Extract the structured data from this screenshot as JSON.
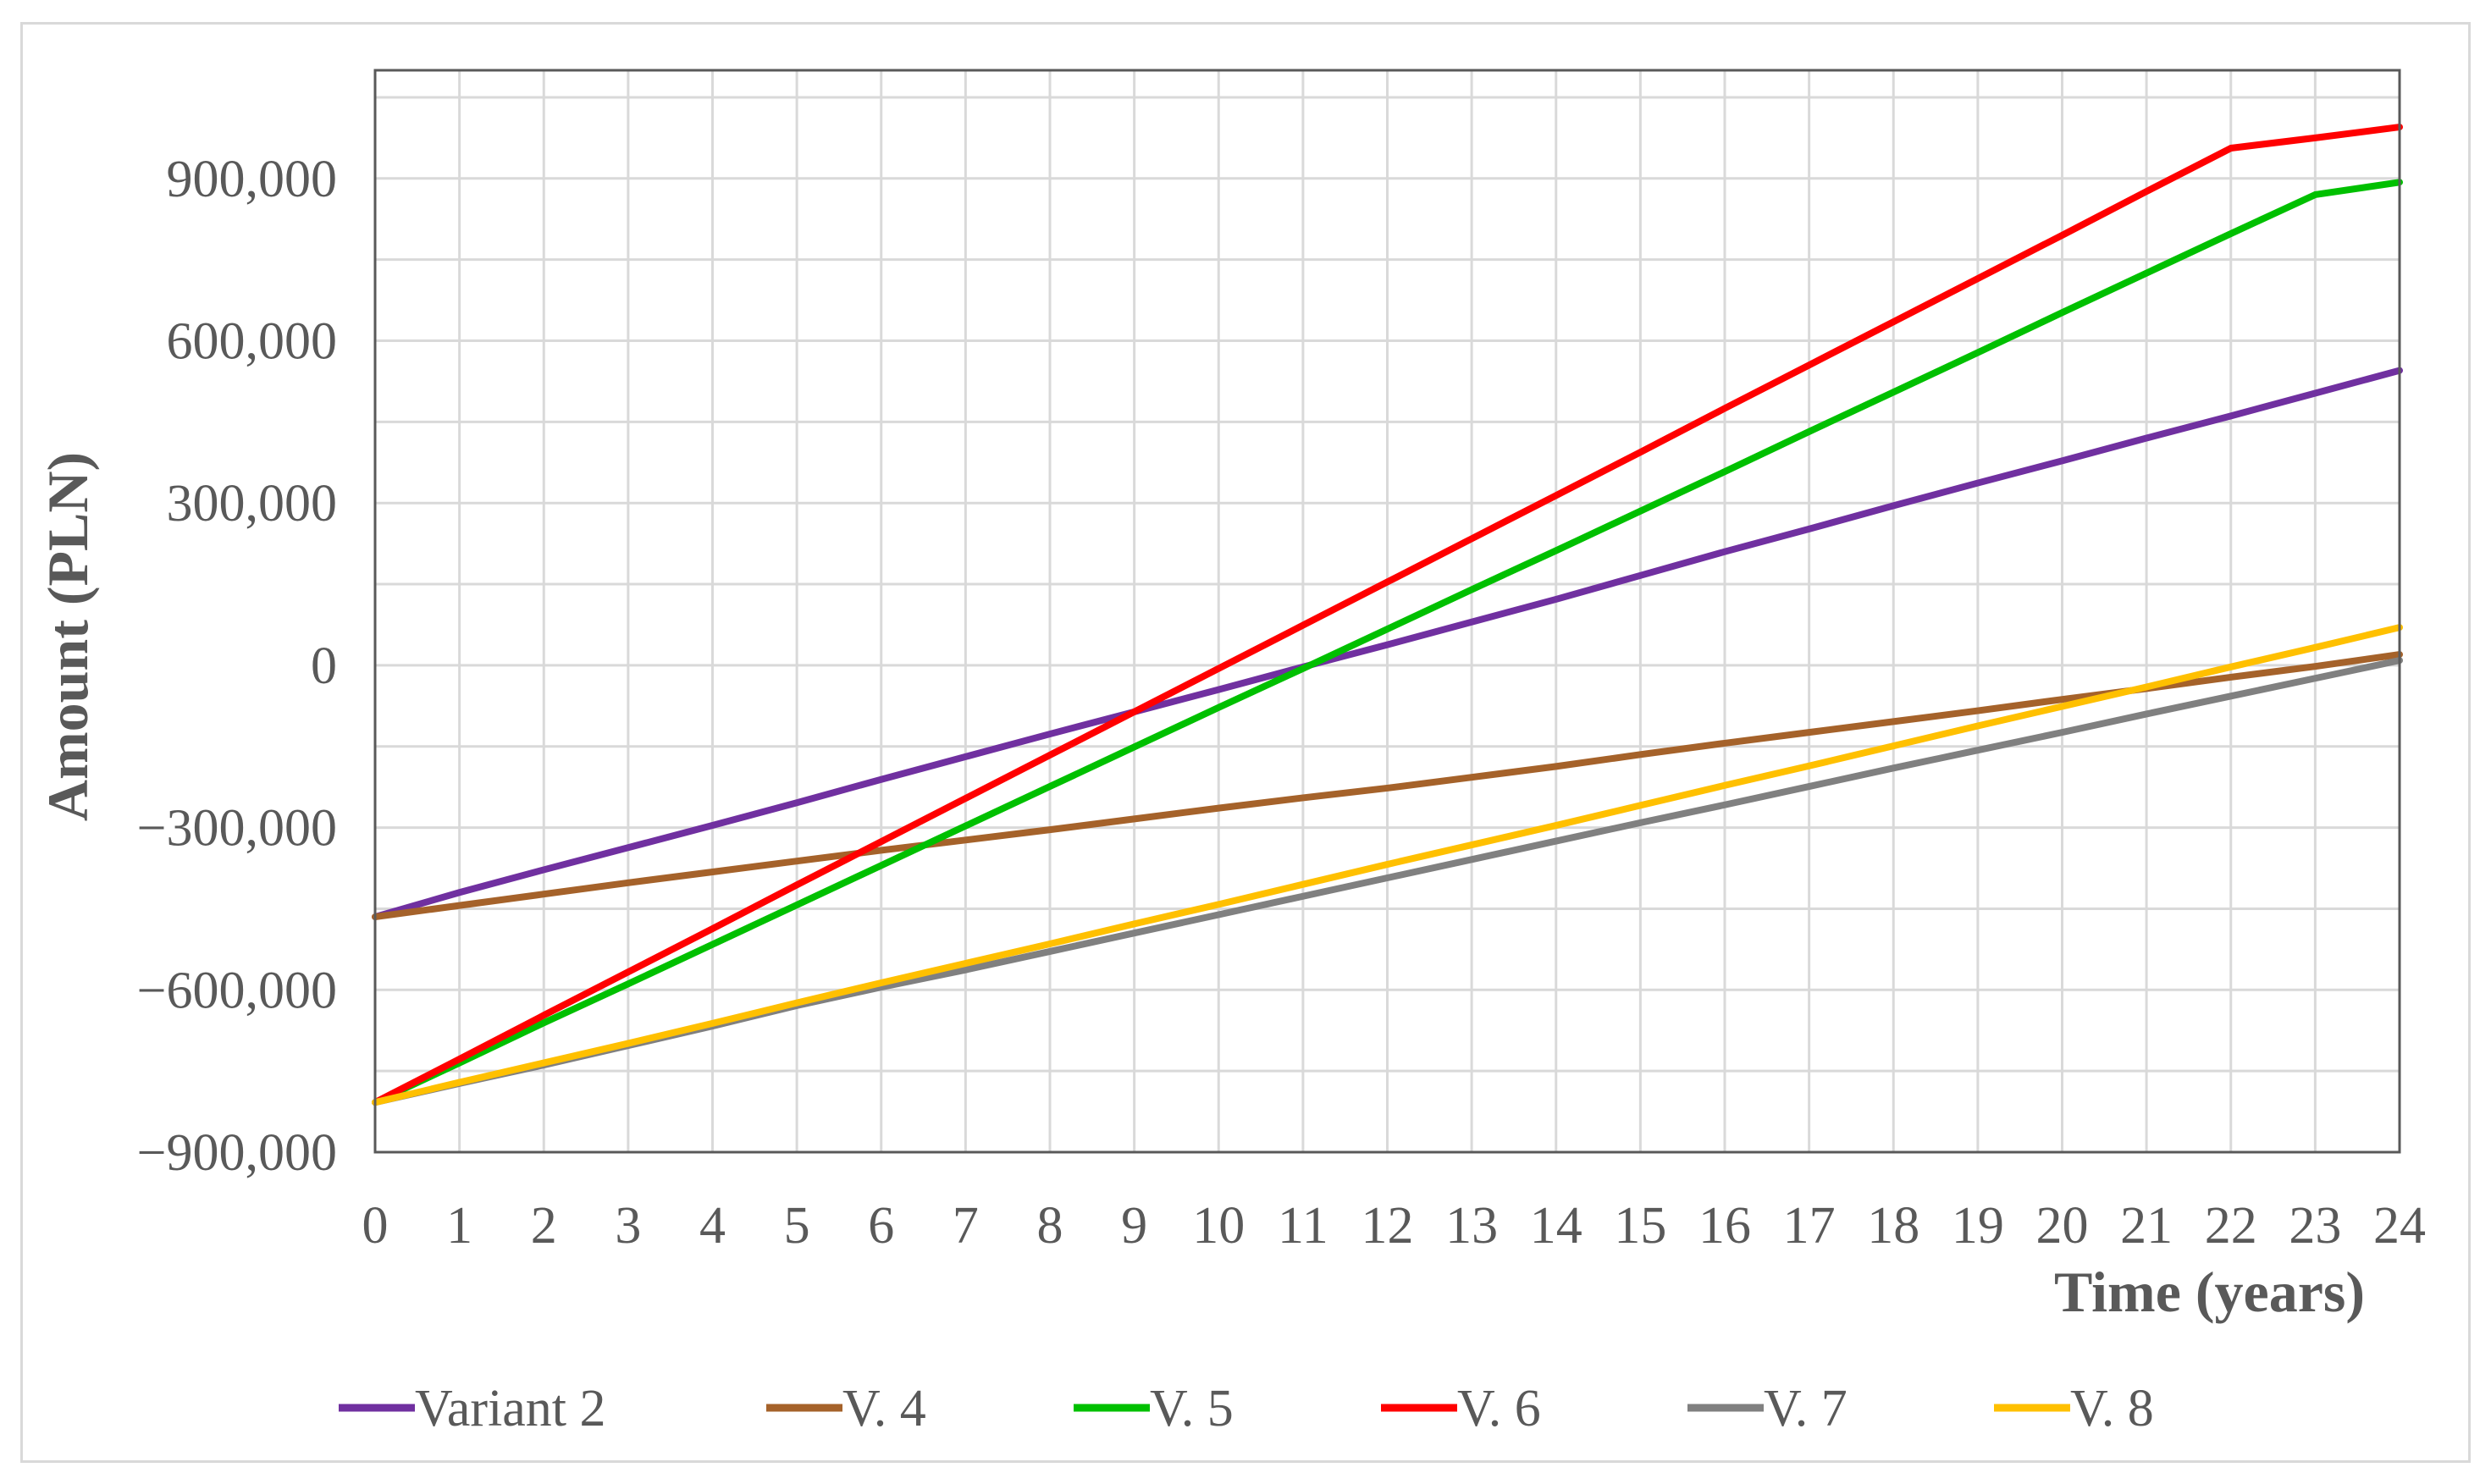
{
  "chart_data": {
    "type": "line",
    "title": "",
    "xlabel": "Time (years)",
    "ylabel": "Amount (PLN)",
    "xlim": [
      0,
      24
    ],
    "ylim": [
      -900000,
      1100000
    ],
    "grid": true,
    "legend_position": "bottom",
    "x_ticks": [
      "0",
      "1",
      "2",
      "3",
      "4",
      "5",
      "6",
      "7",
      "8",
      "9",
      "10",
      "11",
      "12",
      "13",
      "14",
      "15",
      "16",
      "17",
      "18",
      "19",
      "20",
      "21",
      "22",
      "23",
      "24"
    ],
    "y_ticks": [
      {
        "value": 900000,
        "label": "900,000"
      },
      {
        "value": 600000,
        "label": "600,000"
      },
      {
        "value": 300000,
        "label": "300,000"
      },
      {
        "value": 0,
        "label": "0"
      },
      {
        "value": -300000,
        "label": "−300,000"
      },
      {
        "value": -600000,
        "label": "−600,000"
      },
      {
        "value": -900000,
        "label": "−900,000"
      }
    ],
    "x": [
      0,
      1,
      2,
      3,
      4,
      5,
      6,
      7,
      8,
      9,
      10,
      11,
      12,
      13,
      14,
      15,
      16,
      17,
      18,
      19,
      20,
      21,
      22,
      23,
      24
    ],
    "series": [
      {
        "name": "Variant 2",
        "color": "#7030a0",
        "values": [
          -465000,
          -420000,
          -378000,
          -337000,
          -296000,
          -254000,
          -211000,
          -169000,
          -127000,
          -86000,
          -45000,
          -3000,
          38000,
          80000,
          122000,
          166000,
          210000,
          252000,
          295000,
          337000,
          378000,
          420000,
          461000,
          503000,
          545000
        ]
      },
      {
        "name": "V. 4",
        "color": "#a5622a",
        "values": [
          -465000,
          -444000,
          -423000,
          -402000,
          -382000,
          -362000,
          -342000,
          -323000,
          -304000,
          -284000,
          -264000,
          -245000,
          -227000,
          -207000,
          -187000,
          -165000,
          -144000,
          -124000,
          -104000,
          -84000,
          -63000,
          -43000,
          -22000,
          -2000,
          20000
        ]
      },
      {
        "name": "V. 5",
        "color": "#00c000",
        "values": [
          -808000,
          -735000,
          -661000,
          -589000,
          -516000,
          -443000,
          -370000,
          -297000,
          -224000,
          -151000,
          -78000,
          -6000,
          67000,
          140000,
          212000,
          285000,
          358000,
          432000,
          505000,
          578000,
          652000,
          725000,
          798000,
          870000,
          893000
        ]
      },
      {
        "name": "V. 6",
        "color": "#ff0000",
        "values": [
          -808000,
          -728000,
          -647000,
          -567000,
          -487000,
          -406000,
          -326000,
          -246000,
          -166000,
          -86000,
          -6000,
          74000,
          154000,
          234000,
          314000,
          394000,
          475000,
          555000,
          635000,
          715000,
          795000,
          876000,
          956000,
          975000,
          995000
        ]
      },
      {
        "name": "V. 7",
        "color": "#808080",
        "values": [
          -808000,
          -773000,
          -739000,
          -703000,
          -667000,
          -629000,
          -595000,
          -563000,
          -529000,
          -495000,
          -461000,
          -427000,
          -393000,
          -359000,
          -325000,
          -291000,
          -258000,
          -224000,
          -190000,
          -157000,
          -124000,
          -90000,
          -57000,
          -24000,
          9000
        ]
      },
      {
        "name": "V. 8",
        "color": "#ffc000",
        "values": [
          -808000,
          -771000,
          -735000,
          -699000,
          -662000,
          -624000,
          -587000,
          -551000,
          -515000,
          -478000,
          -442000,
          -405000,
          -368000,
          -332000,
          -296000,
          -259000,
          -222000,
          -186000,
          -149000,
          -112000,
          -76000,
          -40000,
          -3000,
          33000,
          70000
        ]
      }
    ]
  }
}
